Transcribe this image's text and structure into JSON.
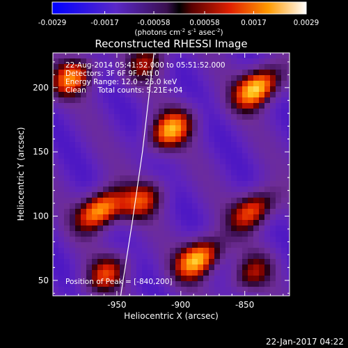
{
  "chart_data": {
    "type": "heatmap",
    "title": "Reconstructed RHESSI Image",
    "xlabel": "Heliocentric X (arcsec)",
    "ylabel": "Heliocentric Y (arcsec)",
    "xlim": [
      -1000,
      -815
    ],
    "ylim": [
      38,
      227
    ],
    "x_ticks": [
      -950,
      -900,
      -850
    ],
    "x_tick_labels": [
      "-950",
      "-900",
      "-850"
    ],
    "y_ticks": [
      50,
      100,
      150,
      200
    ],
    "y_tick_labels": [
      "50",
      "100",
      "150",
      "200"
    ],
    "colorbar": {
      "range": [
        -0.0029,
        0.0029
      ],
      "ticks": [
        -0.0029,
        -0.0017,
        -0.00058,
        0.00058,
        0.0017,
        0.0029
      ],
      "tick_labels": [
        "-0.0029",
        "-0.0017",
        "-0.00058",
        "0.00058",
        "0.0017",
        "0.0029"
      ],
      "units_label": "(photons cm",
      "units_parts": [
        "(photons cm",
        "-2",
        " s",
        "-1",
        " asec",
        "-2",
        ")"
      ]
    },
    "info_lines": [
      "22-Aug-2014 05:41:52.000 to 05:51:52.000",
      "Detectors: 3F 6F 9F, Att 0",
      "Energy Range: 12.0 - 25.0 keV",
      "Clean     Total counts: 5.21E+04"
    ],
    "peak_label": "Position of Peak = [-840,200]",
    "peak_position": [
      -840,
      200
    ],
    "sources": [
      {
        "x": -840,
        "y": 200,
        "amp": 1.0
      },
      {
        "x": -886,
        "y": 67,
        "amp": 0.95
      },
      {
        "x": -963,
        "y": 105,
        "amp": 0.93
      },
      {
        "x": -908,
        "y": 167,
        "amp": 0.8
      },
      {
        "x": -843,
        "y": 105,
        "amp": 0.72
      },
      {
        "x": -985,
        "y": 208,
        "amp": 0.7
      },
      {
        "x": -958,
        "y": 55,
        "amp": 0.55
      },
      {
        "x": -845,
        "y": 55,
        "amp": 0.45
      },
      {
        "x": -930,
        "y": 112,
        "amp": 0.55
      },
      {
        "x": -926,
        "y": 220,
        "amp": 0.45
      }
    ],
    "limb_curve": [
      [
        -947,
        38
      ],
      [
        -938,
        95
      ],
      [
        -930,
        150
      ],
      [
        -921,
        227
      ]
    ]
  },
  "timestamp": "22-Jan-2017 04:22",
  "colors": {
    "background": "#000000",
    "low": "#0000ff",
    "mid_low": "#7a2fb0",
    "zero": "#000000",
    "mid_high": "#e02000",
    "high": "#ffffff"
  }
}
